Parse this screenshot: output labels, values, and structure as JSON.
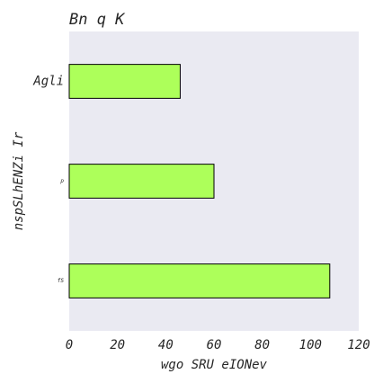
{
  "chart_data": {
    "type": "bar",
    "orientation": "horizontal",
    "title": "Bn  q K",
    "xlabel": "wgo SRU eIONev",
    "ylabel": "nspSLhENZi Ir",
    "categories": [
      "Agli",
      "p",
      "fS"
    ],
    "values": [
      46,
      60,
      108
    ],
    "xlim": [
      0,
      120
    ],
    "xticks": [
      "0",
      "20",
      "40",
      "60",
      "80",
      "100",
      "120"
    ],
    "grid": false,
    "colors": {
      "bar": "#adff5a",
      "bar_edge": "#000000",
      "plot_background": "#eaeaf2",
      "text": "#262626"
    }
  }
}
